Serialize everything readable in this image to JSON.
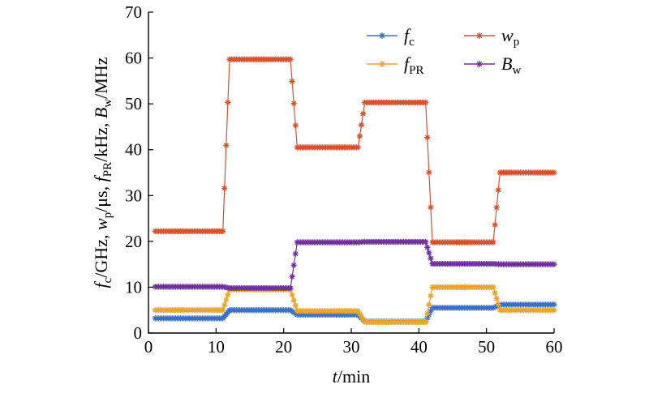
{
  "chart_data": {
    "type": "line",
    "title": "",
    "xlabel": {
      "symbol": "t",
      "unit": "/min"
    },
    "ylabel": [
      {
        "symbol": "f",
        "sub": "c",
        "unit": "/GHz, "
      },
      {
        "symbol": "w",
        "sub": "p",
        "unit": "/μs, "
      },
      {
        "symbol": "f",
        "sub": "PR",
        "unit": "/kHz, "
      },
      {
        "symbol": "B",
        "sub": "w",
        "unit": "/MHz"
      }
    ],
    "xlim": [
      0,
      60
    ],
    "ylim": [
      0,
      70
    ],
    "xticks": [
      0,
      10,
      20,
      30,
      40,
      50,
      60
    ],
    "yticks": [
      0,
      10,
      20,
      30,
      40,
      50,
      60,
      70
    ],
    "grid": false,
    "legend_position": "top-right",
    "marker": "asterisk",
    "sampling": {
      "x_start": 1,
      "x_end": 60,
      "x_step": 0.25
    },
    "series": [
      {
        "key": "fc",
        "name": {
          "symbol": "f",
          "sub": "c"
        },
        "color": "#3b70c4",
        "segments": [
          {
            "x0": 1,
            "x1": 11,
            "y": 3.2
          },
          {
            "x0": 11,
            "x1": 21,
            "y": 5.0
          },
          {
            "x0": 21,
            "x1": 31,
            "y": 4.0
          },
          {
            "x0": 31,
            "x1": 41,
            "y": 2.5
          },
          {
            "x0": 41,
            "x1": 51,
            "y": 5.5
          },
          {
            "x0": 51,
            "x1": 60,
            "y": 6.2
          }
        ]
      },
      {
        "key": "fpr",
        "name": {
          "symbol": "f",
          "sub": "PR"
        },
        "color": "#e9a52e",
        "segments": [
          {
            "x0": 1,
            "x1": 11,
            "y": 5.0
          },
          {
            "x0": 11,
            "x1": 21,
            "y": 9.5
          },
          {
            "x0": 21,
            "x1": 31,
            "y": 4.8
          },
          {
            "x0": 31,
            "x1": 41,
            "y": 2.4
          },
          {
            "x0": 41,
            "x1": 51,
            "y": 10.0
          },
          {
            "x0": 51,
            "x1": 60,
            "y": 5.0
          }
        ]
      },
      {
        "key": "wp",
        "name": {
          "symbol": "w",
          "sub": "p"
        },
        "color": "#d9502c",
        "segments": [
          {
            "x0": 1,
            "x1": 11,
            "y": 22.2
          },
          {
            "x0": 11,
            "x1": 21,
            "y": 59.7
          },
          {
            "x0": 21,
            "x1": 31,
            "y": 40.5
          },
          {
            "x0": 31,
            "x1": 41,
            "y": 50.3
          },
          {
            "x0": 41,
            "x1": 51,
            "y": 19.8
          },
          {
            "x0": 51,
            "x1": 60,
            "y": 35.0
          }
        ]
      },
      {
        "key": "bw",
        "name": {
          "symbol": "B",
          "sub": "w"
        },
        "color": "#7030a0",
        "segments": [
          {
            "x0": 1,
            "x1": 11,
            "y": 10.1
          },
          {
            "x0": 11,
            "x1": 21,
            "y": 9.8
          },
          {
            "x0": 21,
            "x1": 31,
            "y": 19.8
          },
          {
            "x0": 31,
            "x1": 41,
            "y": 19.9
          },
          {
            "x0": 41,
            "x1": 51,
            "y": 15.1
          },
          {
            "x0": 51,
            "x1": 60,
            "y": 15.0
          }
        ]
      }
    ]
  }
}
